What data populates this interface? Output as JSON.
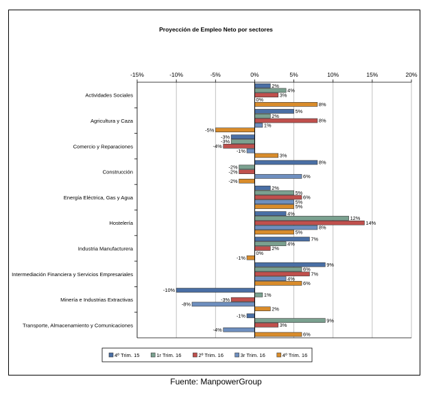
{
  "chart_data": {
    "type": "bar",
    "orientation": "horizontal",
    "title": "Proyección de Empleo Neto por sectores",
    "xlabel": "",
    "ylabel": "",
    "xlim": [
      -15,
      20
    ],
    "x_ticks": [
      -15,
      -10,
      -5,
      0,
      5,
      10,
      15,
      20
    ],
    "x_tick_labels": [
      "-15%",
      "-10%",
      "-5%",
      "0%",
      "5%",
      "10%",
      "15%",
      "20%"
    ],
    "grid": true,
    "legend_position": "bottom",
    "categories": [
      "Actividades Sociales",
      "Agricultura y Caza",
      "Comercio y Reparaciones",
      "Construcción",
      "Energía Eléctrica, Gas y Agua",
      "Hostelería",
      "Industria Manufacturera",
      "Intermediación Financiera y Servicios Empresariales",
      "Minería e Industrias Extractivas",
      "Transporte, Almacenamiento y Comunicaciones"
    ],
    "series": [
      {
        "name": "4º Trim. 15",
        "color": "#4a6fa5",
        "values": [
          2,
          5,
          -3,
          8,
          2,
          4,
          7,
          9,
          -10,
          -1
        ]
      },
      {
        "name": "1r Trim. 16",
        "color": "#7ba190",
        "values": [
          4,
          2,
          -3,
          -2,
          5,
          12,
          4,
          6,
          1,
          9
        ]
      },
      {
        "name": "2º Trim. 16",
        "color": "#c0504d",
        "values": [
          3,
          8,
          -4,
          -2,
          6,
          14,
          2,
          7,
          -3,
          3
        ]
      },
      {
        "name": "3r Trim. 16",
        "color": "#6e8fbf",
        "values": [
          0,
          1,
          -1,
          6,
          5,
          8,
          0,
          4,
          -8,
          -4
        ]
      },
      {
        "name": "4º Trim. 16",
        "color": "#d98c2b",
        "values": [
          8,
          -5,
          3,
          -2,
          5,
          5,
          -1,
          6,
          2,
          6
        ]
      }
    ],
    "data_labels": [
      [
        "2%",
        "4%",
        "3%",
        "0%",
        "8%"
      ],
      [
        "5%",
        "2%",
        "8%",
        "1%",
        "-5%"
      ],
      [
        "-3%",
        "-3%",
        "-4%",
        "-1%",
        "3%"
      ],
      [
        "8%",
        "-2%",
        "-2%",
        "6%",
        "-2%"
      ],
      [
        "2%",
        "5%",
        "6%",
        "5%",
        "5%"
      ],
      [
        "4%",
        "12%",
        "14%",
        "8%",
        "5%"
      ],
      [
        "7%",
        "4%",
        "2%",
        "0%",
        "-1%"
      ],
      [
        "9%",
        "6%",
        "7%",
        "4%",
        "6%"
      ],
      [
        "-10%",
        "1%",
        "-3%",
        "-8%",
        "2%"
      ],
      [
        "-1%",
        "9%",
        "3%",
        "-4%",
        "6%"
      ]
    ]
  },
  "source": "Fuente: ManpowerGroup"
}
